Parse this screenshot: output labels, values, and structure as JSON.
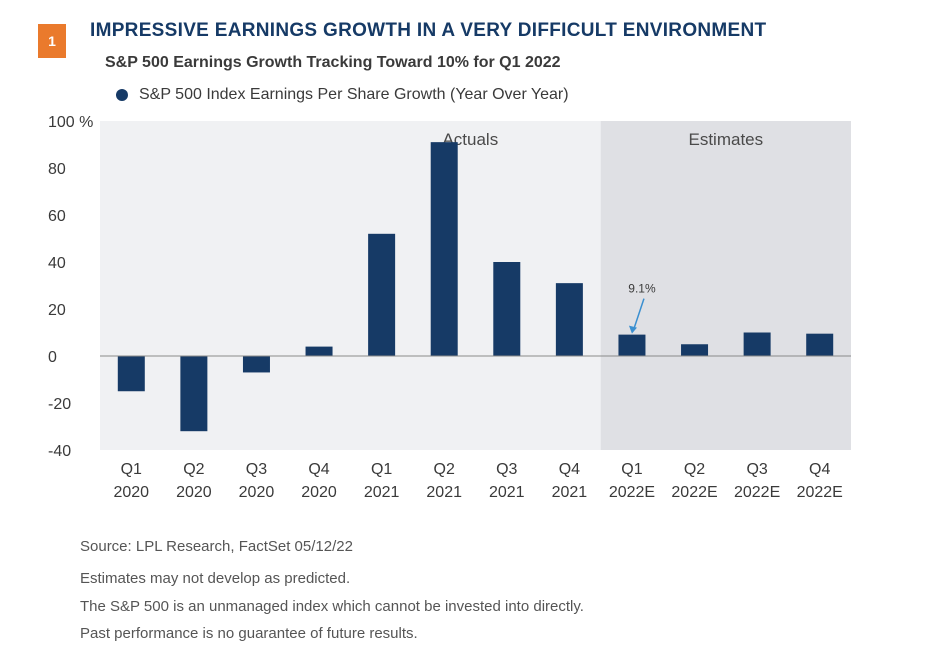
{
  "figure": {
    "badge": "1",
    "title": "IMPRESSIVE EARNINGS GROWTH IN A VERY DIFFICULT ENVIRONMENT",
    "subtitle": "S&P 500 Earnings Growth Tracking Toward 10% for Q1 2022"
  },
  "chart_data": {
    "type": "bar",
    "categories": [
      [
        "Q1",
        "2020"
      ],
      [
        "Q2",
        "2020"
      ],
      [
        "Q3",
        "2020"
      ],
      [
        "Q4",
        "2020"
      ],
      [
        "Q1",
        "2021"
      ],
      [
        "Q2",
        "2021"
      ],
      [
        "Q3",
        "2021"
      ],
      [
        "Q4",
        "2021"
      ],
      [
        "Q1",
        "2022E"
      ],
      [
        "Q2",
        "2022E"
      ],
      [
        "Q3",
        "2022E"
      ],
      [
        "Q4",
        "2022E"
      ]
    ],
    "series": [
      {
        "name": "S&P 500 Index Earnings Per Share Growth (Year Over Year)",
        "color": "#163a66",
        "values": [
          -15,
          -32,
          -7,
          4,
          52,
          91,
          40,
          31,
          9.1,
          5,
          10,
          9.5
        ]
      }
    ],
    "ylim": [
      -40,
      100
    ],
    "yticks": [
      -40,
      -20,
      0,
      20,
      40,
      60,
      80,
      100
    ],
    "ytick_labels": [
      "-40",
      "-20",
      "0",
      "20",
      "40",
      "60",
      "80",
      "100 %"
    ],
    "regions": [
      {
        "label": "Actuals",
        "from": 0,
        "to": 7,
        "color": "#f0f1f3"
      },
      {
        "label": "Estimates",
        "from": 8,
        "to": 11,
        "color": "#dfe0e4"
      }
    ],
    "annotation": {
      "text": "9.1%",
      "category_index": 8
    },
    "grid": false,
    "legend_position": "top-left"
  },
  "footer": {
    "source": "Source: LPL Research, FactSet  05/12/22",
    "notes": [
      "Estimates may not develop as predicted.",
      "The S&P 500 is an unmanaged index which cannot be invested into directly.",
      "Past performance is no guarantee of future results."
    ]
  }
}
